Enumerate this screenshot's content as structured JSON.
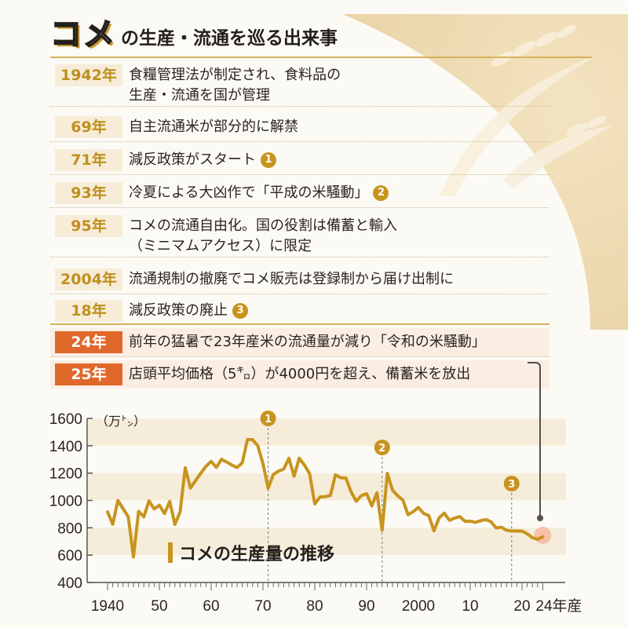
{
  "header": {
    "title_main": "コメ",
    "title_rest": "の生産・流通を巡る出来事"
  },
  "timeline": [
    {
      "year": "1942年",
      "lines": [
        "食糧管理法が制定され、食料品の",
        "生産・流通を国が管理"
      ],
      "marker": ""
    },
    {
      "year": "69年",
      "lines": [
        "自主流通米が部分的に解禁"
      ],
      "marker": ""
    },
    {
      "year": "71年",
      "lines": [
        "減反政策がスタート"
      ],
      "marker": "1"
    },
    {
      "year": "93年",
      "lines": [
        "冷夏による大凶作で「平成の米騒動」"
      ],
      "marker": "2"
    },
    {
      "year": "95年",
      "lines": [
        "コメの流通自由化。国の役割は備蓄と輸入",
        "（ミニマムアクセス）に限定"
      ],
      "marker": ""
    },
    {
      "year": "2004年",
      "lines": [
        "流通規制の撤廃でコメ販売は登録制から届け出制に"
      ],
      "marker": ""
    },
    {
      "year": "18年",
      "lines": [
        "減反政策の廃止"
      ],
      "marker": "3"
    },
    {
      "year": "24年",
      "lines": [
        "前年の猛暑で23年産米の流通量が減り「令和の米騒動」"
      ],
      "marker": "",
      "highlight": true
    },
    {
      "year": "25年",
      "lines": [
        "店頭平均価格（5㌔）が4000円を超え、備蓄米を放出"
      ],
      "marker": "",
      "highlight": true
    }
  ],
  "colors": {
    "line": "#c8941e",
    "band": "#f5edda",
    "highlight_point": "#f4b8a0",
    "orange": "#e0682a",
    "connector": "#55504c"
  },
  "chart_data": {
    "type": "line",
    "title": "コメの生産量の推移",
    "ylabel": "（万㌧）",
    "xlabel": "年産",
    "ylim": [
      400,
      1600
    ],
    "xlim": [
      1940,
      2024
    ],
    "yticks": [
      "400",
      "600",
      "800",
      "1000",
      "1200",
      "1400",
      "1600"
    ],
    "xtick_labels": [
      {
        "year": 1940,
        "label": "1940"
      },
      {
        "year": 1950,
        "label": "50"
      },
      {
        "year": 1960,
        "label": "60"
      },
      {
        "year": 1970,
        "label": "70"
      },
      {
        "year": 1980,
        "label": "80"
      },
      {
        "year": 1990,
        "label": "90"
      },
      {
        "year": 2000,
        "label": "2000"
      },
      {
        "year": 2010,
        "label": "10"
      },
      {
        "year": 2020,
        "label": "20"
      },
      {
        "year": 2024,
        "label": "24年産"
      }
    ],
    "bands": [
      [
        1400,
        1600
      ],
      [
        1000,
        1200
      ],
      [
        600,
        800
      ]
    ],
    "markers": [
      {
        "year": 1971,
        "label": "1"
      },
      {
        "year": 1993,
        "label": "2"
      },
      {
        "year": 2018,
        "label": "3"
      }
    ],
    "highlight_year": 2024,
    "x": [
      1940,
      1941,
      1942,
      1943,
      1944,
      1945,
      1946,
      1947,
      1948,
      1949,
      1950,
      1951,
      1952,
      1953,
      1954,
      1955,
      1956,
      1957,
      1958,
      1959,
      1960,
      1961,
      1962,
      1963,
      1964,
      1965,
      1966,
      1967,
      1968,
      1969,
      1970,
      1971,
      1972,
      1973,
      1974,
      1975,
      1976,
      1977,
      1978,
      1979,
      1980,
      1981,
      1982,
      1983,
      1984,
      1985,
      1986,
      1987,
      1988,
      1989,
      1990,
      1991,
      1992,
      1993,
      1994,
      1995,
      1996,
      1997,
      1998,
      1999,
      2000,
      2001,
      2002,
      2003,
      2004,
      2005,
      2006,
      2007,
      2008,
      2009,
      2010,
      2011,
      2012,
      2013,
      2014,
      2015,
      2016,
      2017,
      2018,
      2019,
      2020,
      2021,
      2022,
      2023,
      2024
    ],
    "values": [
      916,
      826,
      1000,
      940,
      880,
      587,
      921,
      880,
      997,
      938,
      965,
      904,
      993,
      825,
      915,
      1239,
      1090,
      1146,
      1199,
      1250,
      1286,
      1242,
      1301,
      1281,
      1258,
      1241,
      1275,
      1445,
      1445,
      1400,
      1269,
      1089,
      1190,
      1215,
      1229,
      1309,
      1177,
      1309,
      1259,
      1196,
      975,
      1026,
      1027,
      1037,
      1188,
      1166,
      1164,
      1063,
      994,
      1035,
      1050,
      960,
      1057,
      783,
      1198,
      1075,
      1034,
      1003,
      896,
      918,
      949,
      906,
      889,
      778,
      873,
      907,
      855,
      871,
      882,
      847,
      848,
      840,
      852,
      860,
      844,
      799,
      804,
      782,
      778,
      776,
      776,
      756,
      727,
      716,
      734
    ]
  }
}
